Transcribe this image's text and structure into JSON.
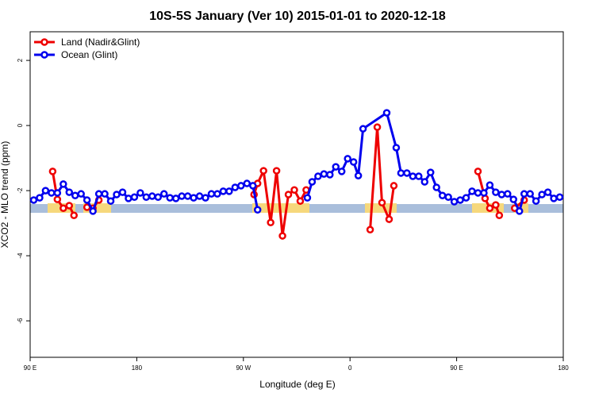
{
  "chart_data": {
    "type": "line",
    "title": "10S-5S January (Ver 10)   2015-01-01 to 2020-12-18",
    "x_label": "Longitude (deg E)",
    "y_label": "XCO2 - MLO trend (ppm)",
    "xlim": [
      90,
      540
    ],
    "ylim": [
      -7.12,
      2.88
    ],
    "xticks": [
      {
        "value": 90,
        "label": "90 E"
      },
      180,
      {
        "value": 270,
        "label": "90 W"
      },
      {
        "value": 360,
        "label": "0"
      },
      {
        "value": 450,
        "label": "90 E"
      },
      {
        "value": 540,
        "label": "180"
      }
    ],
    "yticks": [
      -6,
      -4,
      -2,
      0,
      2
    ],
    "legend": "top-left",
    "series": [
      {
        "name": "Land (Nadir&Glint)",
        "color": "#ee0000",
        "x": [
          109,
          113,
          118,
          123,
          127,
          132,
          138,
          143,
          148,
          210,
          279,
          282,
          287,
          293,
          298,
          303,
          308,
          313,
          318,
          323,
          350,
          377,
          383,
          387,
          393,
          397,
          430,
          468,
          474,
          478,
          483,
          486,
          492,
          499,
          507
        ],
        "values": [
          -1.41,
          -2.27,
          -2.54,
          -2.46,
          -2.76,
          null,
          -2.51,
          -2.54,
          -2.29,
          null,
          -2.12,
          -1.78,
          -1.39,
          -2.98,
          -1.39,
          -3.39,
          -2.12,
          -1.98,
          -2.32,
          -1.98,
          null,
          -3.2,
          -0.05,
          -2.37,
          -2.88,
          -1.85,
          null,
          -1.41,
          -2.24,
          -2.54,
          -2.44,
          -2.76,
          null,
          -2.54,
          -2.29
        ]
      },
      {
        "name": "Ocean (Glint)",
        "color": "#0000ee",
        "x": [
          93,
          98,
          103,
          108,
          113,
          118,
          123,
          128,
          133,
          138,
          143,
          148,
          153,
          158,
          163,
          168,
          173,
          178,
          183,
          188,
          193,
          198,
          203,
          208,
          213,
          218,
          223,
          228,
          233,
          238,
          243,
          248,
          253,
          258,
          263,
          268,
          273,
          278,
          282,
          303,
          324,
          328,
          333,
          338,
          343,
          348,
          353,
          358,
          363,
          367,
          371,
          391,
          399,
          403,
          408,
          413,
          418,
          423,
          428,
          433,
          438,
          443,
          448,
          453,
          458,
          463,
          468,
          473,
          478,
          483,
          488,
          493,
          498,
          503,
          507,
          512,
          517,
          522,
          527,
          532,
          537
        ],
        "values": [
          -2.29,
          -2.22,
          -2.0,
          -2.07,
          -2.07,
          -1.8,
          -2.05,
          -2.15,
          -2.1,
          -2.29,
          -2.63,
          -2.1,
          -2.1,
          -2.32,
          -2.12,
          -2.05,
          -2.24,
          -2.2,
          -2.07,
          -2.2,
          -2.17,
          -2.2,
          -2.1,
          -2.22,
          -2.24,
          -2.17,
          -2.17,
          -2.22,
          -2.17,
          -2.22,
          -2.1,
          -2.1,
          -2.02,
          -2.02,
          -1.9,
          -1.85,
          -1.78,
          -1.85,
          -2.59,
          null,
          -2.22,
          -1.73,
          -1.56,
          -1.49,
          -1.51,
          -1.27,
          -1.41,
          -1.02,
          -1.12,
          -1.54,
          -0.1,
          0.39,
          -0.68,
          -1.46,
          -1.46,
          -1.56,
          -1.56,
          -1.73,
          -1.44,
          -1.9,
          -2.15,
          -2.2,
          -2.34,
          -2.29,
          -2.22,
          -2.02,
          -2.07,
          -2.07,
          -1.83,
          -2.05,
          -2.12,
          -2.1,
          -2.27,
          -2.63,
          -2.1,
          -2.1,
          -2.32,
          -2.12,
          -2.05,
          -2.24,
          -2.2
        ]
      }
    ]
  }
}
